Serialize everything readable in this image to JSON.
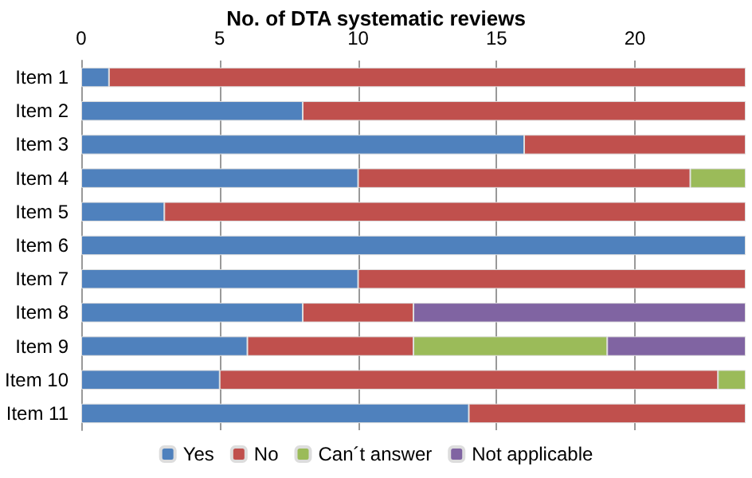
{
  "chart_data": {
    "type": "bar",
    "orientation": "horizontal",
    "stacked": true,
    "title": "No. of DTA systematic reviews",
    "categories": [
      "Item 1",
      "Item 2",
      "Item 3",
      "Item 4",
      "Item 5",
      "Item 6",
      "Item 7",
      "Item 8",
      "Item 9",
      "Item 10",
      "Item 11"
    ],
    "series": [
      {
        "name": "Yes",
        "color": "#4f81bd",
        "values": [
          1,
          8,
          16,
          10,
          3,
          24,
          10,
          8,
          6,
          5,
          14
        ]
      },
      {
        "name": "No",
        "color": "#c0504d",
        "values": [
          23,
          16,
          8,
          12,
          21,
          null,
          14,
          4,
          6,
          18,
          10
        ]
      },
      {
        "name": "Can´t answer",
        "color": "#9bbb59",
        "values": [
          null,
          null,
          null,
          2,
          null,
          null,
          null,
          null,
          7,
          1,
          null
        ]
      },
      {
        "name": "Not applicable",
        "color": "#8064a2",
        "values": [
          null,
          null,
          null,
          null,
          null,
          null,
          null,
          12,
          5,
          null,
          null
        ]
      }
    ],
    "xlim": [
      0,
      24
    ],
    "xticks": [
      0,
      5,
      10,
      15,
      20
    ],
    "grid": "x",
    "legend": "bottom"
  }
}
